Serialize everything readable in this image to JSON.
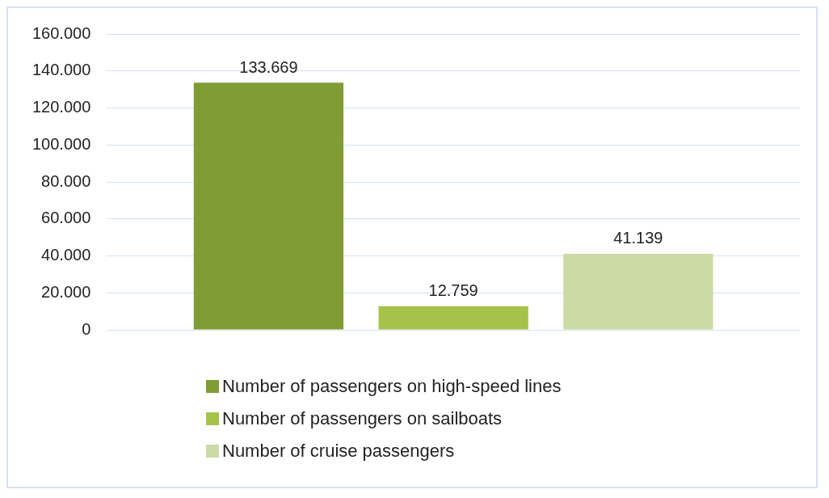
{
  "chart_data": {
    "type": "bar",
    "categories": [
      null
    ],
    "series": [
      {
        "name": "Number of passengers on high-speed lines",
        "color": "#7f9c35",
        "values": [
          133669
        ],
        "value_labels": [
          "133.669"
        ]
      },
      {
        "name": "Number of passengers on sailboats",
        "color": "#a5c34a",
        "values": [
          12759
        ],
        "value_labels": [
          "12.759"
        ]
      },
      {
        "name": "Number of cruise passengers",
        "color": "#ccdaa6",
        "values": [
          41139
        ],
        "value_labels": [
          "41.139"
        ]
      }
    ],
    "ylim": [
      0,
      160000
    ],
    "yticks": [
      {
        "value": 0,
        "label": "0"
      },
      {
        "value": 20000,
        "label": "20.000"
      },
      {
        "value": 40000,
        "label": "40.000"
      },
      {
        "value": 60000,
        "label": "60.000"
      },
      {
        "value": 80000,
        "label": "80.000"
      },
      {
        "value": 100000,
        "label": "100.000"
      },
      {
        "value": 120000,
        "label": "120.000"
      },
      {
        "value": 140000,
        "label": "140.000"
      },
      {
        "value": 160000,
        "label": "160.000"
      }
    ],
    "grid": "y",
    "legend": "bottom"
  }
}
